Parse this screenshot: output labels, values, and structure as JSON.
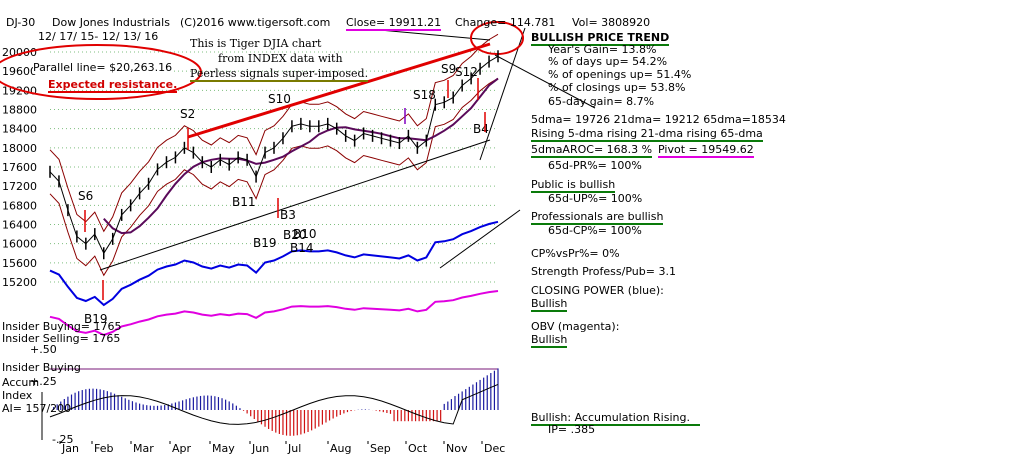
{
  "header": {
    "symbol": "DJ-30",
    "name": "Dow Jones Industrials",
    "site": "(C)2016 www.tigersoft.com",
    "date_range": "12/ 17/ 15- 12/ 13/ 16",
    "close": "Close=  19911.21",
    "change": "Change= 114.781",
    "vol": "Vol=  3808920"
  },
  "annotations": {
    "chart_note_1": "This is Tiger DJIA chart",
    "chart_note_2": "from INDEX data with",
    "chart_note_3": "Peerless signals super-imposed.",
    "parallel_line": "Parallel line= $20,263.16",
    "expected_resistance": "Expected resistance."
  },
  "stats": {
    "trend_title": "BULLISH PRICE TREND",
    "years_gain": "Year's Gain= 13.8%",
    "pct_days_up": "% of days up= 54.2%",
    "pct_openings_up": "% of openings up= 51.4%",
    "pct_closings_up": "% of closings up= 53.8%",
    "gain_65day": "65-day gain= 8.7%",
    "dma_line": "5dma= 19726 21dma= 19212 65dma=18534",
    "rising_line": "Rising 5-dma rising 21-dma rising 65-dma",
    "aroc": "5dmaAROC= 168.3 %",
    "pivot": "Pivot =  19549.62",
    "pr65": "65d-PR%= 100%",
    "public": "Public is bullish",
    "up65": "65d-UP%= 100%",
    "professionals": "Professionals are bullish",
    "cp65": "65d-CP%= 100%",
    "cp_vs_pr": "CP%vsPr%=  0%",
    "strength": "Strength Profess/Pub= 3.1",
    "closing_power_label": "CLOSING POWER (blue):",
    "closing_power_value": "Bullish",
    "obv_label": "OBV (magenta):",
    "obv_value": "Bullish",
    "accumulation": "Bullish: Accumulation Rising.",
    "ip": "IP= .385"
  },
  "lower_panel": {
    "insider_buying_count": "Insider Buying= 1765",
    "insider_selling_count": "Insider Selling= 1765",
    "insider_buying_label": "Insider Buying",
    "accum_label": "Accum",
    "index_label": "Index",
    "ai_label": "AI= 157/200",
    "tick_plus50": "+.50",
    "tick_plus25": "+.25",
    "tick_minus25": "-.25"
  },
  "colors": {
    "price": "#000000",
    "ma_dark": "#5a0a5a",
    "band": "#8b0000",
    "closing_power": "#0000e0",
    "obv": "#e000e0",
    "accum_pos": "#1a1aa0",
    "accum_neg": "#d01010",
    "resistance": "#e00000"
  },
  "chart_data": {
    "type": "line",
    "y_ticks": [
      15200,
      15600,
      16000,
      16400,
      16800,
      17200,
      17600,
      18000,
      18400,
      18800,
      19200,
      19600,
      20000
    ],
    "ylim": [
      15000,
      20200
    ],
    "x_ticks": [
      "Jan",
      "Feb",
      "Mar",
      "Apr",
      "May",
      "Jun",
      "Jul",
      "Aug",
      "Sep",
      "Oct",
      "Nov",
      "Dec"
    ],
    "series": [
      {
        "x": [
          0,
          5,
          10,
          15,
          20,
          25,
          30,
          35,
          40,
          45,
          50,
          55,
          60,
          65,
          70,
          75,
          80,
          85,
          90,
          95,
          100,
          105,
          110,
          115,
          120,
          125,
          130,
          135,
          140,
          145,
          150,
          155,
          160,
          165,
          170,
          175,
          180,
          185,
          190,
          195,
          200,
          205,
          210,
          215,
          220,
          225,
          230,
          235,
          240,
          245,
          250
        ],
        "values": [
          17500,
          17300,
          16700,
          16150,
          16000,
          16200,
          15800,
          16100,
          16600,
          16800,
          17050,
          17250,
          17550,
          17700,
          17800,
          18000,
          17900,
          17700,
          17600,
          17750,
          17650,
          17800,
          17750,
          17400,
          17900,
          18000,
          18200,
          18450,
          18500,
          18450,
          18450,
          18500,
          18400,
          18250,
          18150,
          18300,
          18250,
          18200,
          18150,
          18100,
          18250,
          18000,
          18150,
          18900,
          18950,
          19050,
          19300,
          19450,
          19650,
          19800,
          19911
        ]
      }
    ],
    "signals": [
      "S6",
      "S2",
      "S10",
      "S18",
      "S9",
      "S12",
      "B11",
      "B3",
      "B19",
      "B20",
      "B10",
      "B14",
      "B4",
      "B19"
    ]
  }
}
